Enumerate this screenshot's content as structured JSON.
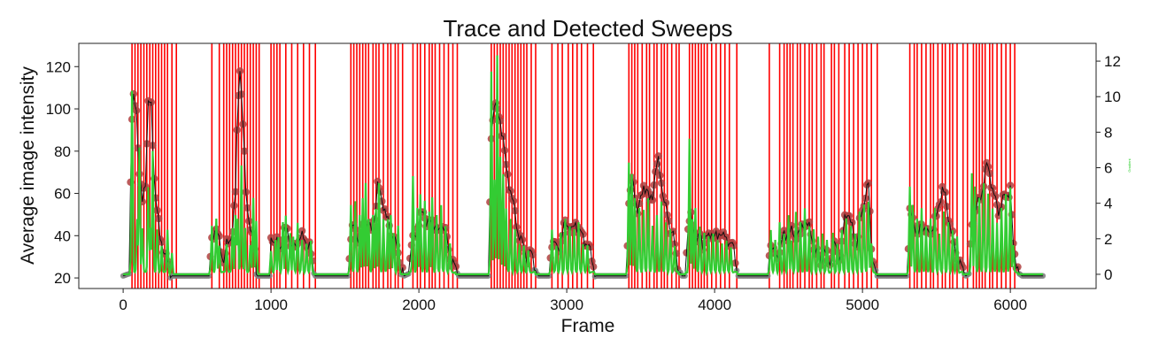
{
  "chart_data": {
    "type": "line",
    "title": "Trace and Detected Sweeps",
    "xlabel": "Frame",
    "ylabel": "Average image intensity",
    "y2label": "Gradient",
    "xlim": [
      -300,
      6580
    ],
    "ylim": [
      15,
      131
    ],
    "y2lim": [
      -0.8,
      13.0
    ],
    "xticks": [
      0,
      1000,
      2000,
      3000,
      4000,
      5000,
      6000
    ],
    "yticks": [
      20,
      40,
      60,
      80,
      100,
      120
    ],
    "y2ticks": [
      0,
      2,
      4,
      6,
      8,
      10,
      12
    ],
    "grid": false,
    "colors": {
      "trace": "#111111",
      "detected_points": "#b04040",
      "baseline_points": "#808080",
      "gradient": "#33cc33",
      "sweep_lines": "#ff0000"
    },
    "intensity_key": [
      [
        0,
        21
      ],
      [
        40,
        22
      ],
      [
        55,
        90
      ],
      [
        70,
        104
      ],
      [
        90,
        99
      ],
      [
        110,
        70
      ],
      [
        130,
        55
      ],
      [
        150,
        66
      ],
      [
        170,
        104
      ],
      [
        190,
        100
      ],
      [
        210,
        68
      ],
      [
        230,
        52
      ],
      [
        250,
        38
      ],
      [
        270,
        35
      ],
      [
        290,
        30
      ],
      [
        310,
        24
      ],
      [
        330,
        21
      ],
      [
        580,
        21
      ],
      [
        600,
        38
      ],
      [
        620,
        44
      ],
      [
        640,
        40
      ],
      [
        660,
        34
      ],
      [
        680,
        28
      ],
      [
        700,
        35
      ],
      [
        720,
        38
      ],
      [
        740,
        43
      ],
      [
        760,
        60
      ],
      [
        775,
        103
      ],
      [
        790,
        120
      ],
      [
        810,
        92
      ],
      [
        830,
        62
      ],
      [
        850,
        48
      ],
      [
        870,
        38
      ],
      [
        890,
        34
      ],
      [
        900,
        24
      ],
      [
        920,
        21
      ],
      [
        990,
        21
      ],
      [
        1000,
        40
      ],
      [
        1020,
        38
      ],
      [
        1040,
        36
      ],
      [
        1060,
        34
      ],
      [
        1080,
        40
      ],
      [
        1100,
        43
      ],
      [
        1120,
        40
      ],
      [
        1140,
        35
      ],
      [
        1160,
        33
      ],
      [
        1180,
        38
      ],
      [
        1200,
        40
      ],
      [
        1220,
        38
      ],
      [
        1240,
        37
      ],
      [
        1260,
        35
      ],
      [
        1280,
        26
      ],
      [
        1300,
        21
      ],
      [
        1520,
        21
      ],
      [
        1540,
        40
      ],
      [
        1560,
        44
      ],
      [
        1580,
        41
      ],
      [
        1600,
        38
      ],
      [
        1620,
        43
      ],
      [
        1640,
        47
      ],
      [
        1660,
        44
      ],
      [
        1680,
        42
      ],
      [
        1700,
        49
      ],
      [
        1720,
        63
      ],
      [
        1740,
        60
      ],
      [
        1760,
        55
      ],
      [
        1780,
        48
      ],
      [
        1800,
        45
      ],
      [
        1820,
        40
      ],
      [
        1840,
        36
      ],
      [
        1860,
        33
      ],
      [
        1880,
        24
      ],
      [
        1900,
        21
      ],
      [
        1930,
        22
      ],
      [
        1950,
        35
      ],
      [
        1970,
        40
      ],
      [
        1990,
        44
      ],
      [
        2010,
        48
      ],
      [
        2030,
        52
      ],
      [
        2050,
        47
      ],
      [
        2070,
        44
      ],
      [
        2090,
        48
      ],
      [
        2110,
        44
      ],
      [
        2130,
        40
      ],
      [
        2150,
        46
      ],
      [
        2170,
        44
      ],
      [
        2190,
        38
      ],
      [
        2210,
        30
      ],
      [
        2230,
        27
      ],
      [
        2250,
        24
      ],
      [
        2270,
        21
      ],
      [
        2470,
        21
      ],
      [
        2490,
        88
      ],
      [
        2510,
        103
      ],
      [
        2530,
        98
      ],
      [
        2550,
        95
      ],
      [
        2570,
        86
      ],
      [
        2590,
        72
      ],
      [
        2610,
        65
      ],
      [
        2630,
        58
      ],
      [
        2650,
        50
      ],
      [
        2670,
        42
      ],
      [
        2690,
        38
      ],
      [
        2710,
        34
      ],
      [
        2730,
        30
      ],
      [
        2750,
        32
      ],
      [
        2770,
        30
      ],
      [
        2790,
        24
      ],
      [
        2810,
        21
      ],
      [
        2880,
        21
      ],
      [
        2900,
        38
      ],
      [
        2920,
        36
      ],
      [
        2940,
        33
      ],
      [
        2960,
        38
      ],
      [
        2980,
        44
      ],
      [
        3000,
        46
      ],
      [
        3020,
        44
      ],
      [
        3040,
        42
      ],
      [
        3060,
        46
      ],
      [
        3080,
        44
      ],
      [
        3100,
        40
      ],
      [
        3120,
        38
      ],
      [
        3140,
        36
      ],
      [
        3160,
        32
      ],
      [
        3180,
        26
      ],
      [
        3200,
        21
      ],
      [
        3400,
        21
      ],
      [
        3420,
        56
      ],
      [
        3440,
        66
      ],
      [
        3460,
        60
      ],
      [
        3480,
        52
      ],
      [
        3500,
        56
      ],
      [
        3520,
        64
      ],
      [
        3540,
        62
      ],
      [
        3560,
        56
      ],
      [
        3580,
        60
      ],
      [
        3600,
        70
      ],
      [
        3620,
        75
      ],
      [
        3640,
        66
      ],
      [
        3660,
        55
      ],
      [
        3680,
        50
      ],
      [
        3700,
        44
      ],
      [
        3720,
        40
      ],
      [
        3740,
        30
      ],
      [
        3760,
        24
      ],
      [
        3780,
        21
      ],
      [
        3800,
        21
      ],
      [
        3820,
        45
      ],
      [
        3840,
        48
      ],
      [
        3860,
        42
      ],
      [
        3880,
        38
      ],
      [
        3900,
        40
      ],
      [
        3920,
        36
      ],
      [
        3940,
        40
      ],
      [
        3960,
        38
      ],
      [
        3980,
        42
      ],
      [
        4000,
        40
      ],
      [
        4020,
        38
      ],
      [
        4040,
        43
      ],
      [
        4060,
        40
      ],
      [
        4080,
        37
      ],
      [
        4100,
        38
      ],
      [
        4120,
        36
      ],
      [
        4140,
        28
      ],
      [
        4160,
        21
      ],
      [
        4360,
        21
      ],
      [
        4380,
        38
      ],
      [
        4400,
        33
      ],
      [
        4420,
        28
      ],
      [
        4440,
        34
      ],
      [
        4460,
        40
      ],
      [
        4480,
        38
      ],
      [
        4500,
        44
      ],
      [
        4520,
        42
      ],
      [
        4540,
        38
      ],
      [
        4560,
        43
      ],
      [
        4580,
        40
      ],
      [
        4600,
        45
      ],
      [
        4620,
        47
      ],
      [
        4640,
        43
      ],
      [
        4660,
        38
      ],
      [
        4680,
        33
      ],
      [
        4700,
        30
      ],
      [
        4720,
        28
      ],
      [
        4740,
        33
      ],
      [
        4760,
        30
      ],
      [
        4780,
        28
      ],
      [
        4800,
        33
      ],
      [
        4820,
        35
      ],
      [
        4840,
        30
      ],
      [
        4860,
        35
      ],
      [
        4880,
        48
      ],
      [
        4900,
        52
      ],
      [
        4920,
        46
      ],
      [
        4940,
        40
      ],
      [
        4960,
        36
      ],
      [
        4980,
        45
      ],
      [
        5000,
        52
      ],
      [
        5020,
        60
      ],
      [
        5040,
        64
      ],
      [
        5060,
        35
      ],
      [
        5080,
        26
      ],
      [
        5100,
        21
      ],
      [
        5300,
        21
      ],
      [
        5320,
        50
      ],
      [
        5340,
        48
      ],
      [
        5360,
        44
      ],
      [
        5380,
        40
      ],
      [
        5400,
        46
      ],
      [
        5420,
        44
      ],
      [
        5440,
        40
      ],
      [
        5460,
        42
      ],
      [
        5480,
        45
      ],
      [
        5500,
        48
      ],
      [
        5520,
        56
      ],
      [
        5540,
        62
      ],
      [
        5560,
        58
      ],
      [
        5580,
        50
      ],
      [
        5600,
        42
      ],
      [
        5620,
        36
      ],
      [
        5640,
        30
      ],
      [
        5660,
        26
      ],
      [
        5680,
        24
      ],
      [
        5700,
        21
      ],
      [
        5720,
        22
      ],
      [
        5740,
        45
      ],
      [
        5760,
        52
      ],
      [
        5780,
        55
      ],
      [
        5800,
        58
      ],
      [
        5820,
        66
      ],
      [
        5840,
        73
      ],
      [
        5860,
        70
      ],
      [
        5880,
        62
      ],
      [
        5900,
        56
      ],
      [
        5920,
        52
      ],
      [
        5940,
        55
      ],
      [
        5960,
        58
      ],
      [
        5980,
        60
      ],
      [
        6000,
        62
      ],
      [
        6020,
        35
      ],
      [
        6040,
        28
      ],
      [
        6060,
        22
      ],
      [
        6080,
        21
      ],
      [
        6220,
        21
      ]
    ],
    "gradient_bursts": [
      [
        60,
        10.2
      ],
      [
        95,
        3.0
      ],
      [
        110,
        7.0
      ],
      [
        130,
        2.5
      ],
      [
        170,
        4.8
      ],
      [
        185,
        2.5
      ],
      [
        200,
        6.8
      ],
      [
        230,
        2.4
      ],
      [
        260,
        1.5
      ],
      [
        300,
        2.4
      ],
      [
        330,
        1.2
      ],
      [
        600,
        2.6
      ],
      [
        630,
        3.0
      ],
      [
        650,
        1.5
      ],
      [
        700,
        1.6
      ],
      [
        740,
        2.5
      ],
      [
        760,
        3.2
      ],
      [
        775,
        3.0
      ],
      [
        800,
        6.0
      ],
      [
        825,
        2.5
      ],
      [
        860,
        1.5
      ],
      [
        880,
        4.2
      ],
      [
        900,
        3.0
      ],
      [
        1000,
        1.2
      ],
      [
        1030,
        1.8
      ],
      [
        1050,
        2.0
      ],
      [
        1080,
        2.8
      ],
      [
        1100,
        3.2
      ],
      [
        1130,
        2.2
      ],
      [
        1150,
        2.0
      ],
      [
        1180,
        2.8
      ],
      [
        1210,
        1.8
      ],
      [
        1240,
        1.6
      ],
      [
        1270,
        1.8
      ],
      [
        1540,
        3.8
      ],
      [
        1570,
        4.0
      ],
      [
        1600,
        3.2
      ],
      [
        1620,
        4.2
      ],
      [
        1640,
        5.0
      ],
      [
        1660,
        3.0
      ],
      [
        1690,
        3.2
      ],
      [
        1710,
        3.6
      ],
      [
        1730,
        5.0
      ],
      [
        1760,
        3.0
      ],
      [
        1790,
        3.0
      ],
      [
        1810,
        3.2
      ],
      [
        1830,
        2.2
      ],
      [
        1860,
        2.6
      ],
      [
        1960,
        5.4
      ],
      [
        1990,
        3.6
      ],
      [
        2010,
        4.4
      ],
      [
        2040,
        4.0
      ],
      [
        2070,
        3.4
      ],
      [
        2090,
        4.2
      ],
      [
        2120,
        3.2
      ],
      [
        2150,
        3.8
      ],
      [
        2180,
        2.6
      ],
      [
        2210,
        1.6
      ],
      [
        2490,
        11.3
      ],
      [
        2510,
        5.2
      ],
      [
        2530,
        12.2
      ],
      [
        2550,
        6.5
      ],
      [
        2570,
        5.5
      ],
      [
        2590,
        3.6
      ],
      [
        2620,
        3.0
      ],
      [
        2650,
        2.4
      ],
      [
        2680,
        1.6
      ],
      [
        2710,
        1.5
      ],
      [
        2740,
        1.2
      ],
      [
        2900,
        2.4
      ],
      [
        2930,
        1.5
      ],
      [
        2960,
        2.2
      ],
      [
        2990,
        3.0
      ],
      [
        3020,
        2.6
      ],
      [
        3050,
        2.4
      ],
      [
        3080,
        2.8
      ],
      [
        3110,
        1.6
      ],
      [
        3140,
        1.5
      ],
      [
        3420,
        6.2
      ],
      [
        3440,
        5.5
      ],
      [
        3460,
        4.2
      ],
      [
        3490,
        3.6
      ],
      [
        3520,
        3.5
      ],
      [
        3550,
        4.2
      ],
      [
        3580,
        2.6
      ],
      [
        3610,
        3.2
      ],
      [
        3640,
        4.0
      ],
      [
        3670,
        2.8
      ],
      [
        3700,
        2.4
      ],
      [
        3730,
        1.5
      ],
      [
        3830,
        7.5
      ],
      [
        3850,
        3.0
      ],
      [
        3870,
        3.6
      ],
      [
        3900,
        2.6
      ],
      [
        3930,
        2.2
      ],
      [
        3960,
        2.0
      ],
      [
        3990,
        2.2
      ],
      [
        4020,
        1.8
      ],
      [
        4050,
        1.6
      ],
      [
        4080,
        1.8
      ],
      [
        4110,
        1.4
      ],
      [
        4380,
        2.4
      ],
      [
        4410,
        1.8
      ],
      [
        4440,
        2.8
      ],
      [
        4470,
        2.2
      ],
      [
        4500,
        3.2
      ],
      [
        4520,
        1.8
      ],
      [
        4550,
        3.4
      ],
      [
        4580,
        2.8
      ],
      [
        4610,
        3.6
      ],
      [
        4640,
        2.6
      ],
      [
        4670,
        2.4
      ],
      [
        4700,
        2.0
      ],
      [
        4730,
        2.2
      ],
      [
        4760,
        1.8
      ],
      [
        4800,
        2.2
      ],
      [
        4830,
        1.6
      ],
      [
        4860,
        2.4
      ],
      [
        4890,
        3.0
      ],
      [
        4920,
        2.6
      ],
      [
        4950,
        2.2
      ],
      [
        4980,
        3.4
      ],
      [
        5010,
        3.8
      ],
      [
        5040,
        4.0
      ],
      [
        5060,
        1.6
      ],
      [
        5320,
        4.8
      ],
      [
        5340,
        3.8
      ],
      [
        5370,
        3.0
      ],
      [
        5400,
        3.6
      ],
      [
        5430,
        2.6
      ],
      [
        5460,
        3.0
      ],
      [
        5490,
        3.6
      ],
      [
        5520,
        2.2
      ],
      [
        5550,
        3.4
      ],
      [
        5580,
        2.8
      ],
      [
        5610,
        2.4
      ],
      [
        5640,
        2.0
      ],
      [
        5740,
        5.6
      ],
      [
        5760,
        4.8
      ],
      [
        5790,
        4.2
      ],
      [
        5820,
        5.0
      ],
      [
        5850,
        4.4
      ],
      [
        5880,
        3.6
      ],
      [
        5910,
        2.8
      ],
      [
        5940,
        3.6
      ],
      [
        5970,
        4.4
      ],
      [
        6000,
        4.8
      ],
      [
        6020,
        1.5
      ]
    ],
    "sweep_frames": [
      60,
      80,
      100,
      120,
      140,
      160,
      180,
      200,
      220,
      240,
      260,
      280,
      300,
      330,
      360,
      600,
      650,
      680,
      700,
      720,
      740,
      760,
      780,
      800,
      820,
      840,
      860,
      880,
      900,
      920,
      1000,
      1020,
      1040,
      1060,
      1100,
      1140,
      1180,
      1220,
      1260,
      1300,
      1540,
      1560,
      1580,
      1600,
      1620,
      1640,
      1660,
      1690,
      1710,
      1730,
      1760,
      1790,
      1810,
      1840,
      1860,
      1890,
      1960,
      1990,
      2010,
      2040,
      2070,
      2090,
      2110,
      2140,
      2170,
      2200,
      2230,
      2260,
      2490,
      2510,
      2530,
      2550,
      2570,
      2590,
      2610,
      2630,
      2650,
      2670,
      2690,
      2710,
      2730,
      2760,
      2790,
      2900,
      2940,
      2970,
      3010,
      3040,
      3070,
      3100,
      3140,
      3180,
      3420,
      3440,
      3460,
      3480,
      3510,
      3540,
      3560,
      3590,
      3610,
      3640,
      3660,
      3680,
      3710,
      3740,
      3760,
      3830,
      3850,
      3870,
      3890,
      3910,
      3930,
      3950,
      3980,
      4010,
      4040,
      4070,
      4100,
      4150,
      4370,
      4440,
      4470,
      4490,
      4510,
      4530,
      4560,
      4580,
      4610,
      4640,
      4660,
      4690,
      4720,
      4740,
      4790,
      4810,
      4840,
      4880,
      4910,
      4940,
      4970,
      5000,
      5030,
      5060,
      5100,
      5320,
      5350,
      5370,
      5400,
      5430,
      5460,
      5480,
      5510,
      5540,
      5560,
      5590,
      5610,
      5640,
      5680,
      5710,
      5750,
      5770,
      5790,
      5810,
      5830,
      5860,
      5880,
      5910,
      5940,
      5970,
      6000,
      6030
    ]
  }
}
